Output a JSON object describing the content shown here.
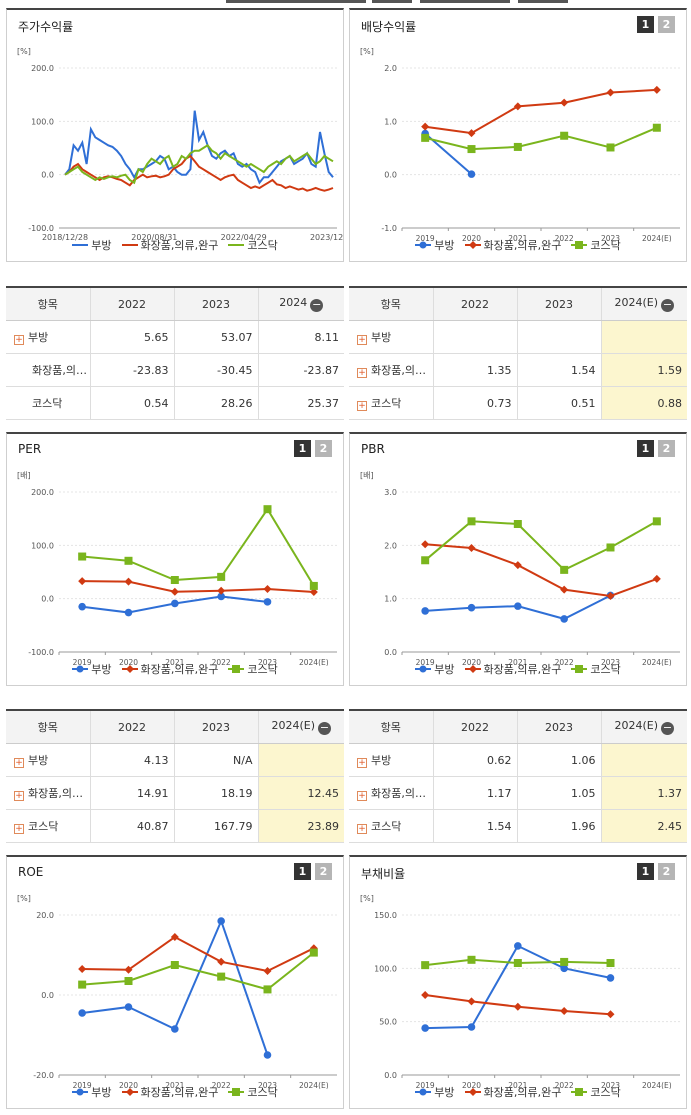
{
  "panels": [
    {
      "title": "주가수익률",
      "pager": false,
      "chart_data": {
        "type": "line",
        "unit": "[%]",
        "ylim": [
          -100,
          200
        ],
        "yticks": [
          "200.0",
          "100.0",
          "0.0",
          "-100.0"
        ],
        "xlabels": [
          "2018/12/28",
          "2020/08/31",
          "2022/04/29",
          "2023/12/28"
        ],
        "series": [
          {
            "name": "부방",
            "color": "#2f6fd6",
            "marker": "none",
            "values": [
              0,
              10,
              55,
              45,
              60,
              20,
              85,
              70,
              65,
              60,
              55,
              52,
              45,
              35,
              20,
              10,
              -5,
              10,
              10,
              15,
              20,
              25,
              35,
              30,
              10,
              15,
              5,
              0,
              0,
              10,
              120,
              65,
              80,
              55,
              35,
              30,
              40,
              45,
              35,
              40,
              20,
              15,
              20,
              10,
              5,
              -15,
              -5,
              -5,
              5,
              15,
              25,
              30,
              35,
              20,
              25,
              30,
              40,
              20,
              15,
              80,
              40,
              5,
              -5
            ]
          },
          {
            "name": "화장품,의류,완구",
            "color": "#d03a12",
            "marker": "none",
            "values": [
              0,
              5,
              15,
              20,
              10,
              5,
              0,
              -5,
              -10,
              -5,
              -3,
              -5,
              -8,
              -10,
              -15,
              -20,
              -10,
              -5,
              0,
              -5,
              -3,
              -2,
              -5,
              -3,
              0,
              10,
              15,
              20,
              30,
              35,
              25,
              15,
              10,
              5,
              0,
              -5,
              -10,
              -5,
              -2,
              0,
              -10,
              -15,
              -20,
              -25,
              -22,
              -25,
              -20,
              -15,
              -10,
              -18,
              -20,
              -25,
              -22,
              -25,
              -28,
              -26,
              -30,
              -28,
              -25,
              -28,
              -30,
              -28,
              -25
            ]
          },
          {
            "name": "코스닥",
            "color": "#7ab51d",
            "marker": "none",
            "values": [
              0,
              5,
              10,
              15,
              5,
              0,
              -5,
              -10,
              -5,
              -8,
              -5,
              -3,
              -5,
              -2,
              0,
              -10,
              -15,
              10,
              5,
              20,
              30,
              25,
              20,
              30,
              35,
              15,
              20,
              35,
              30,
              40,
              45,
              45,
              50,
              55,
              45,
              40,
              30,
              40,
              35,
              30,
              25,
              20,
              15,
              20,
              15,
              10,
              5,
              15,
              20,
              25,
              20,
              30,
              35,
              25,
              30,
              35,
              40,
              30,
              20,
              25,
              35,
              30,
              25
            ]
          }
        ]
      },
      "legend": [
        "부방",
        "화장품,의류,완구",
        "코스닥"
      ]
    },
    {
      "title": "배당수익률",
      "pager": true,
      "pager_labels": [
        "1",
        "2"
      ],
      "chart_data": {
        "type": "line",
        "unit": "[%]",
        "ylim": [
          -1,
          2
        ],
        "yticks": [
          "2.0",
          "1.0",
          "0.0",
          "-1.0"
        ],
        "xlabels": [
          "2019",
          "2020",
          "2021",
          "2022",
          "2023",
          "2024(E)"
        ],
        "series": [
          {
            "name": "부방",
            "color": "#2f6fd6",
            "marker": "circle",
            "values": [
              0.77,
              0.01,
              null,
              null,
              null,
              null
            ]
          },
          {
            "name": "화장품,의류,완구",
            "color": "#d03a12",
            "marker": "diamond",
            "values": [
              0.9,
              0.78,
              1.28,
              1.35,
              1.54,
              1.59
            ]
          },
          {
            "name": "코스닥",
            "color": "#7ab51d",
            "marker": "square",
            "values": [
              0.69,
              0.48,
              0.52,
              0.73,
              0.51,
              0.88
            ]
          }
        ]
      },
      "legend": [
        "부방",
        "화장품,의류,완구",
        "코스닥"
      ]
    },
    {
      "title": "PER",
      "pager": true,
      "pager_labels": [
        "1",
        "2"
      ],
      "chart_data": {
        "type": "line",
        "unit": "[배]",
        "ylim": [
          -100,
          200
        ],
        "yticks": [
          "200.0",
          "100.0",
          "0.0",
          "-100.0"
        ],
        "xlabels": [
          "2019",
          "2020",
          "2021",
          "2022",
          "2023",
          "2024(E)"
        ],
        "series": [
          {
            "name": "부방",
            "color": "#2f6fd6",
            "marker": "circle",
            "values": [
              -15,
              -26,
              -9,
              4.13,
              -6,
              null
            ]
          },
          {
            "name": "화장품,의류,완구",
            "color": "#d03a12",
            "marker": "diamond",
            "values": [
              33,
              32,
              13,
              14.91,
              18.19,
              12.45
            ]
          },
          {
            "name": "코스닥",
            "color": "#7ab51d",
            "marker": "square",
            "values": [
              79,
              71,
              35,
              40.87,
              167.79,
              23.89
            ]
          }
        ]
      },
      "legend": [
        "부방",
        "화장품,의류,완구",
        "코스닥"
      ]
    },
    {
      "title": "PBR",
      "pager": true,
      "pager_labels": [
        "1",
        "2"
      ],
      "chart_data": {
        "type": "line",
        "unit": "[배]",
        "ylim": [
          0,
          3
        ],
        "yticks": [
          "3.0",
          "2.0",
          "1.0",
          "0.0"
        ],
        "xlabels": [
          "2019",
          "2020",
          "2021",
          "2022",
          "2023",
          "2024(E)"
        ],
        "series": [
          {
            "name": "부방",
            "color": "#2f6fd6",
            "marker": "circle",
            "values": [
              0.77,
              0.83,
              0.86,
              0.62,
              1.06,
              null
            ]
          },
          {
            "name": "화장품,의류,완구",
            "color": "#d03a12",
            "marker": "diamond",
            "values": [
              2.02,
              1.95,
              1.63,
              1.17,
              1.05,
              1.37
            ]
          },
          {
            "name": "코스닥",
            "color": "#7ab51d",
            "marker": "square",
            "values": [
              1.72,
              2.45,
              2.4,
              1.54,
              1.96,
              2.45
            ]
          }
        ]
      },
      "legend": [
        "부방",
        "화장품,의류,완구",
        "코스닥"
      ]
    },
    {
      "title": "ROE",
      "pager": true,
      "pager_labels": [
        "1",
        "2"
      ],
      "chart_data": {
        "type": "line",
        "unit": "[%]",
        "ylim": [
          -20,
          20
        ],
        "yticks": [
          "20.0",
          "0.0",
          "-20.0"
        ],
        "xlabels": [
          "2019",
          "2020",
          "2021",
          "2022",
          "2023",
          "2024(E)"
        ],
        "series": [
          {
            "name": "부방",
            "color": "#2f6fd6",
            "marker": "circle",
            "values": [
              -4.5,
              -3,
              -8.5,
              18.5,
              -15,
              null
            ]
          },
          {
            "name": "화장품,의류,완구",
            "color": "#d03a12",
            "marker": "diamond",
            "values": [
              6.5,
              6.3,
              14.5,
              8.3,
              6,
              11.7
            ]
          },
          {
            "name": "코스닥",
            "color": "#7ab51d",
            "marker": "square",
            "values": [
              2.6,
              3.5,
              7.5,
              4.6,
              1.4,
              10.6
            ]
          }
        ]
      },
      "legend": [
        "부방",
        "화장품,의류,완구",
        "코스닥"
      ]
    },
    {
      "title": "부채비율",
      "pager": true,
      "pager_labels": [
        "1",
        "2"
      ],
      "chart_data": {
        "type": "line",
        "unit": "[%]",
        "ylim": [
          0,
          150
        ],
        "yticks": [
          "150.0",
          "100.0",
          "50.0",
          "0.0"
        ],
        "xlabels": [
          "2019",
          "2020",
          "2021",
          "2022",
          "2023",
          "2024(E)"
        ],
        "series": [
          {
            "name": "부방",
            "color": "#2f6fd6",
            "marker": "circle",
            "values": [
              44,
              45,
              121,
              100,
              91,
              null
            ]
          },
          {
            "name": "화장품,의류,완구",
            "color": "#d03a12",
            "marker": "diamond",
            "values": [
              75,
              69,
              64,
              60,
              57,
              null
            ]
          },
          {
            "name": "코스닥",
            "color": "#7ab51d",
            "marker": "square",
            "values": [
              103,
              108,
              105,
              106,
              105,
              null
            ]
          }
        ]
      },
      "legend": [
        "부방",
        "화장품,의류,완구",
        "코스닥"
      ]
    }
  ],
  "tables": [
    {
      "headers": [
        "항목",
        "2022",
        "2023",
        "2024"
      ],
      "est_col": false,
      "rows": [
        {
          "name": "부방",
          "plus": true,
          "cells": [
            "5.65",
            "53.07",
            "8.11"
          ]
        },
        {
          "name": "화장품,의…",
          "plus": false,
          "cells": [
            "-23.83",
            "-30.45",
            "-23.87"
          ]
        },
        {
          "name": "코스닥",
          "plus": false,
          "cells": [
            "0.54",
            "28.26",
            "25.37"
          ]
        }
      ]
    },
    {
      "headers": [
        "항목",
        "2022",
        "2023",
        "2024(E)"
      ],
      "est_col": true,
      "rows": [
        {
          "name": "부방",
          "plus": true,
          "cells": [
            "",
            "",
            ""
          ]
        },
        {
          "name": "화장품,의…",
          "plus": true,
          "cells": [
            "1.35",
            "1.54",
            "1.59"
          ]
        },
        {
          "name": "코스닥",
          "plus": true,
          "cells": [
            "0.73",
            "0.51",
            "0.88"
          ]
        }
      ]
    },
    {
      "headers": [
        "항목",
        "2022",
        "2023",
        "2024(E)"
      ],
      "est_col": true,
      "rows": [
        {
          "name": "부방",
          "plus": true,
          "cells": [
            "4.13",
            "N/A",
            ""
          ]
        },
        {
          "name": "화장품,의…",
          "plus": true,
          "cells": [
            "14.91",
            "18.19",
            "12.45"
          ]
        },
        {
          "name": "코스닥",
          "plus": true,
          "cells": [
            "40.87",
            "167.79",
            "23.89"
          ]
        }
      ]
    },
    {
      "headers": [
        "항목",
        "2022",
        "2023",
        "2024(E)"
      ],
      "est_col": true,
      "rows": [
        {
          "name": "부방",
          "plus": true,
          "cells": [
            "0.62",
            "1.06",
            ""
          ]
        },
        {
          "name": "화장품,의…",
          "plus": true,
          "cells": [
            "1.17",
            "1.05",
            "1.37"
          ]
        },
        {
          "name": "코스닥",
          "plus": true,
          "cells": [
            "1.54",
            "1.96",
            "2.45"
          ]
        }
      ]
    }
  ]
}
